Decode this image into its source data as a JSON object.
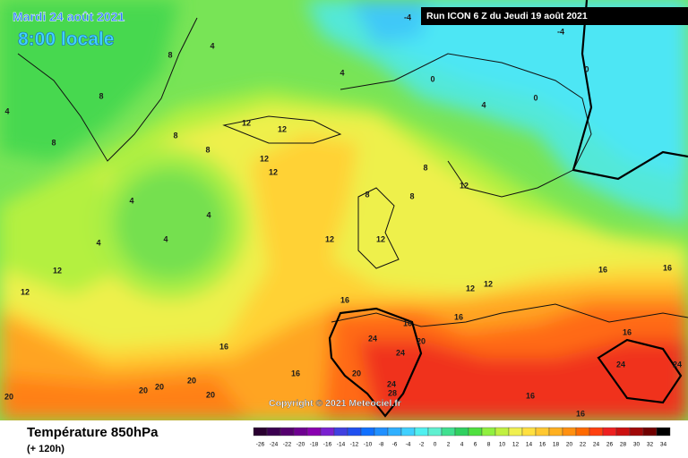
{
  "header": {
    "date": "Mardi 24 août 2021",
    "time": "8:00 locale",
    "run": "Run ICON 6 Z du Jeudi 19 août 2021",
    "copyright": "Copyright © 2021 Meteociel.fr"
  },
  "footer": {
    "title": "Température 850hPa",
    "lead": "(+ 120h)"
  },
  "legend": {
    "labels": [
      "-26",
      "-24",
      "-22",
      "-20",
      "-18",
      "-16",
      "-14",
      "-12",
      "-10",
      "-8",
      "-6",
      "-4",
      "-2",
      "0",
      "2",
      "4",
      "6",
      "8",
      "10",
      "12",
      "14",
      "16",
      "18",
      "20",
      "22",
      "24",
      "26",
      "28",
      "30",
      "32",
      "34"
    ],
    "colors": [
      "#2a0030",
      "#3b0050",
      "#55006e",
      "#6e0090",
      "#8a00b0",
      "#7a20d0",
      "#4040e0",
      "#2050f0",
      "#1070ff",
      "#2090ff",
      "#30b0ff",
      "#40d0ff",
      "#50f0f0",
      "#60f0d0",
      "#40e090",
      "#30d060",
      "#50e040",
      "#90f040",
      "#c0f040",
      "#f0f050",
      "#ffe040",
      "#ffc830",
      "#ffb020",
      "#ff9010",
      "#ff6a00",
      "#ff4010",
      "#ee2020",
      "#cc1010",
      "#a00808",
      "#700000",
      "#000000"
    ]
  },
  "contour_labels": [
    "4",
    "4",
    "4",
    "4",
    "4",
    "4",
    "4",
    "0",
    "0",
    "0",
    "-4",
    "-4",
    "4",
    "8",
    "8",
    "8",
    "8",
    "8",
    "8",
    "8",
    "8",
    "12",
    "12",
    "12",
    "12",
    "12",
    "12",
    "12",
    "12",
    "12",
    "12",
    "12",
    "16",
    "16",
    "16",
    "16",
    "16",
    "16",
    "16",
    "16",
    "24",
    "24",
    "24",
    "24",
    "20",
    "20",
    "20",
    "20",
    "20",
    "20",
    "20",
    "24",
    "28",
    "16",
    "16"
  ]
}
